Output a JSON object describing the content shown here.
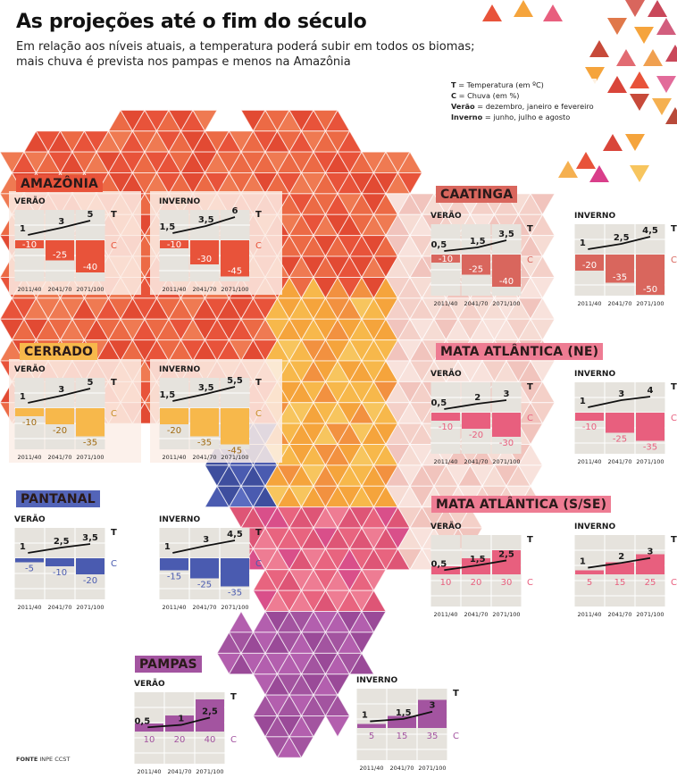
{
  "header": {
    "title": "As projeções até o fim do século",
    "subtitle_line1": "Em relação aos níveis atuais, a temperatura poderá subir em todos os biomas;",
    "subtitle_line2": "mais chuva é prevista nos pampas e menos na Amazônia"
  },
  "legend": {
    "t_key": "T",
    "t_desc": " = Temperatura (em ºC)",
    "c_key": "C",
    "c_desc": " = Chuva (em %)",
    "verao_key": "Verão",
    "verao_desc": " = dezembro, janeiro e fevereiro",
    "inverno_key": "Inverno",
    "inverno_desc": " = junho, julho e agosto"
  },
  "source": {
    "label": "FONTE",
    "value": "INPE CCST"
  },
  "colors": {
    "amazonia": "#e8533a",
    "cerrado": "#f7b84b",
    "caatinga": "#d9665d",
    "mata_ne": "#e85f7e",
    "pantanal": "#4a5bb0",
    "mata_sse": "#e85f7e",
    "pampas": "#a354a0",
    "chart_bg": "#e6e3dd",
    "grid": "#ffffff",
    "line": "#111111"
  },
  "chart_data": [
    {
      "type": "bar+line",
      "biome": "AMAZÔNIA",
      "season": "VERÃO",
      "categories": [
        "2011/40",
        "2041/70",
        "2071/100"
      ],
      "temperature": [
        1,
        3,
        5
      ],
      "temperature_labels": [
        "1",
        "3",
        "5"
      ],
      "rain": [
        -10,
        -25,
        -40
      ],
      "rain_labels": [
        "-10",
        "-25",
        "-40"
      ],
      "t_axis_label": "T",
      "c_axis_label": "C",
      "color": "#e8533a"
    },
    {
      "type": "bar+line",
      "biome": "AMAZÔNIA",
      "season": "INVERNO",
      "categories": [
        "2011/40",
        "2041/70",
        "2071/100"
      ],
      "temperature": [
        1.5,
        3.5,
        6
      ],
      "temperature_labels": [
        "1,5",
        "3,5",
        "6"
      ],
      "rain": [
        -10,
        -30,
        -45
      ],
      "rain_labels": [
        "-10",
        "-30",
        "-45"
      ],
      "t_axis_label": "T",
      "c_axis_label": "C",
      "color": "#e8533a"
    },
    {
      "type": "bar+line",
      "biome": "CAATINGA",
      "season": "VERÃO",
      "categories": [
        "2011/40",
        "2041/70",
        "2071/100"
      ],
      "temperature": [
        0.5,
        1.5,
        3.5
      ],
      "temperature_labels": [
        "0,5",
        "1,5",
        "3,5"
      ],
      "rain": [
        -10,
        -25,
        -40
      ],
      "rain_labels": [
        "-10",
        "-25",
        "-40"
      ],
      "t_axis_label": "T",
      "c_axis_label": "C",
      "color": "#d9665d"
    },
    {
      "type": "bar+line",
      "biome": "CAATINGA",
      "season": "INVERNO",
      "categories": [
        "2011/40",
        "2041/70",
        "2071/100"
      ],
      "temperature": [
        1,
        2.5,
        4.5
      ],
      "temperature_labels": [
        "1",
        "2,5",
        "4,5"
      ],
      "rain": [
        -20,
        -35,
        -50
      ],
      "rain_labels": [
        "-20",
        "-35",
        "-50"
      ],
      "t_axis_label": "T",
      "c_axis_label": "C",
      "color": "#d9665d"
    },
    {
      "type": "bar+line",
      "biome": "CERRADO",
      "season": "VERÃO",
      "categories": [
        "2011/40",
        "2041/70",
        "2071/100"
      ],
      "temperature": [
        1,
        3,
        5
      ],
      "temperature_labels": [
        "1",
        "3",
        "5"
      ],
      "rain": [
        -10,
        -20,
        -35
      ],
      "rain_labels": [
        "-10",
        "-20",
        "-35"
      ],
      "t_axis_label": "T",
      "c_axis_label": "C",
      "color": "#f7b84b"
    },
    {
      "type": "bar+line",
      "biome": "CERRADO",
      "season": "INVERNO",
      "categories": [
        "2011/40",
        "2041/70",
        "2071/100"
      ],
      "temperature": [
        1.5,
        3.5,
        5.5
      ],
      "temperature_labels": [
        "1,5",
        "3,5",
        "5,5"
      ],
      "rain": [
        -20,
        -35,
        -45
      ],
      "rain_labels": [
        "-20",
        "-35",
        "-45"
      ],
      "t_axis_label": "T",
      "c_axis_label": "C",
      "color": "#f7b84b"
    },
    {
      "type": "bar+line",
      "biome": "MATA ATLÂNTICA (NE)",
      "season": "VERÃO",
      "categories": [
        "2011/40",
        "2041/70",
        "2071/100"
      ],
      "temperature": [
        0.5,
        2,
        3
      ],
      "temperature_labels": [
        "0,5",
        "2",
        "3"
      ],
      "rain": [
        -10,
        -20,
        -30
      ],
      "rain_labels": [
        "-10",
        "-20",
        "-30"
      ],
      "t_axis_label": "T",
      "c_axis_label": "C",
      "color": "#e85f7e"
    },
    {
      "type": "bar+line",
      "biome": "MATA ATLÂNTICA (NE)",
      "season": "INVERNO",
      "categories": [
        "2011/40",
        "2041/70",
        "2071/100"
      ],
      "temperature": [
        1,
        3,
        4
      ],
      "temperature_labels": [
        "1",
        "3",
        "4"
      ],
      "rain": [
        -10,
        -25,
        -35
      ],
      "rain_labels": [
        "-10",
        "-25",
        "-35"
      ],
      "t_axis_label": "T",
      "c_axis_label": "C",
      "color": "#e85f7e"
    },
    {
      "type": "bar+line",
      "biome": "PANTANAL",
      "season": "VERÃO",
      "categories": [
        "2011/40",
        "2041/70",
        "2071/100"
      ],
      "temperature": [
        1,
        2.5,
        3.5
      ],
      "temperature_labels": [
        "1",
        "2,5",
        "3,5"
      ],
      "rain": [
        -5,
        -10,
        -20
      ],
      "rain_labels": [
        "-5",
        "-10",
        "-20"
      ],
      "t_axis_label": "T",
      "c_axis_label": "C",
      "color": "#4a5bb0"
    },
    {
      "type": "bar+line",
      "biome": "PANTANAL",
      "season": "INVERNO",
      "categories": [
        "2011/40",
        "2041/70",
        "2071/100"
      ],
      "temperature": [
        1,
        3,
        4.5
      ],
      "temperature_labels": [
        "1",
        "3",
        "4,5"
      ],
      "rain": [
        -15,
        -25,
        -35
      ],
      "rain_labels": [
        "-15",
        "-25",
        "-35"
      ],
      "t_axis_label": "T",
      "c_axis_label": "C",
      "color": "#4a5bb0"
    },
    {
      "type": "bar+line",
      "biome": "MATA ATLÂNTICA (S/SE)",
      "season": "VERÃO",
      "categories": [
        "2011/40",
        "2041/70",
        "2071/100"
      ],
      "temperature": [
        0.5,
        1.5,
        2.5
      ],
      "temperature_labels": [
        "0,5",
        "1,5",
        "2,5"
      ],
      "rain": [
        10,
        20,
        30
      ],
      "rain_labels": [
        "10",
        "20",
        "30"
      ],
      "t_axis_label": "T",
      "c_axis_label": "C",
      "color": "#e85f7e"
    },
    {
      "type": "bar+line",
      "biome": "MATA ATLÂNTICA (S/SE)",
      "season": "INVERNO",
      "categories": [
        "2011/40",
        "2041/70",
        "2071/100"
      ],
      "temperature": [
        1,
        2,
        3
      ],
      "temperature_labels": [
        "1",
        "2",
        "3"
      ],
      "rain": [
        5,
        15,
        25
      ],
      "rain_labels": [
        "5",
        "15",
        "25"
      ],
      "t_axis_label": "T",
      "c_axis_label": "C",
      "color": "#e85f7e"
    },
    {
      "type": "bar+line",
      "biome": "PAMPAS",
      "season": "VERÃO",
      "categories": [
        "2011/40",
        "2041/70",
        "2071/100"
      ],
      "temperature": [
        0.5,
        1,
        2.5
      ],
      "temperature_labels": [
        "0,5",
        "1",
        "2,5"
      ],
      "rain": [
        10,
        20,
        40
      ],
      "rain_labels": [
        "10",
        "20",
        "40"
      ],
      "t_axis_label": "T",
      "c_axis_label": "C",
      "color": "#a354a0"
    },
    {
      "type": "bar+line",
      "biome": "PAMPAS",
      "season": "INVERNO",
      "categories": [
        "2011/40",
        "2041/70",
        "2071/100"
      ],
      "temperature": [
        1,
        1.5,
        3
      ],
      "temperature_labels": [
        "1",
        "1,5",
        "3"
      ],
      "rain": [
        5,
        15,
        35
      ],
      "rain_labels": [
        "5",
        "15",
        "35"
      ],
      "t_axis_label": "T",
      "c_axis_label": "C",
      "color": "#a354a0"
    }
  ],
  "biome_tags": [
    {
      "label": "AMAZÔNIA",
      "color": "#e8533a"
    },
    {
      "label": "CAATINGA",
      "color": "#d9665d"
    },
    {
      "label": "CERRADO",
      "color": "#f7b84b"
    },
    {
      "label": "MATA ATLÂNTICA (NE)",
      "color": "#ee7c93"
    },
    {
      "label": "PANTANAL",
      "color": "#5364b8"
    },
    {
      "label": "MATA ATLÂNTICA (S/SE)",
      "color": "#ee7c93"
    },
    {
      "label": "PAMPAS",
      "color": "#a354a0"
    }
  ]
}
